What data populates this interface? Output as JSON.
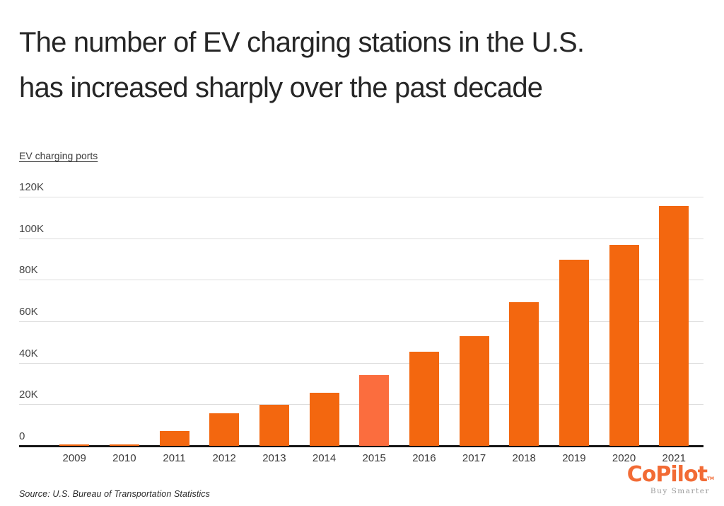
{
  "header": {
    "title_line1": "The number of EV charging stations in the U.S.",
    "title_line2": "has increased sharply over the past decade"
  },
  "chart_data": {
    "type": "bar",
    "title": "The number of EV charging stations in the U.S. has increased sharply over the past decade",
    "ylabel": "EV charging ports",
    "xlabel": "",
    "categories": [
      "2009",
      "2010",
      "2011",
      "2012",
      "2013",
      "2014",
      "2015",
      "2016",
      "2017",
      "2018",
      "2019",
      "2020",
      "2021"
    ],
    "values": [
      600,
      800,
      7100,
      15600,
      19700,
      25600,
      34000,
      45300,
      52900,
      69300,
      89700,
      96800,
      115600
    ],
    "highlighted_category": "2015",
    "yticks": [
      {
        "label": "0",
        "value": 0
      },
      {
        "label": "20K",
        "value": 20000
      },
      {
        "label": "40K",
        "value": 40000
      },
      {
        "label": "60K",
        "value": 60000
      },
      {
        "label": "80K",
        "value": 80000
      },
      {
        "label": "100K",
        "value": 100000
      },
      {
        "label": "120K",
        "value": 120000
      }
    ],
    "ylim": [
      0,
      126000
    ],
    "grid": "horizontal",
    "legend": "none",
    "colors": {
      "bar": "#f3670f",
      "highlight": "#fb6d3e",
      "gridline": "#dedede",
      "axis": "#151515"
    }
  },
  "footer": {
    "source": "Source:  U.S. Bureau of Transportation Statistics",
    "logo_text": "CoPilot",
    "logo_tm": "TM",
    "logo_tagline": "Buy Smarter",
    "logo_color": "#f26b35"
  }
}
